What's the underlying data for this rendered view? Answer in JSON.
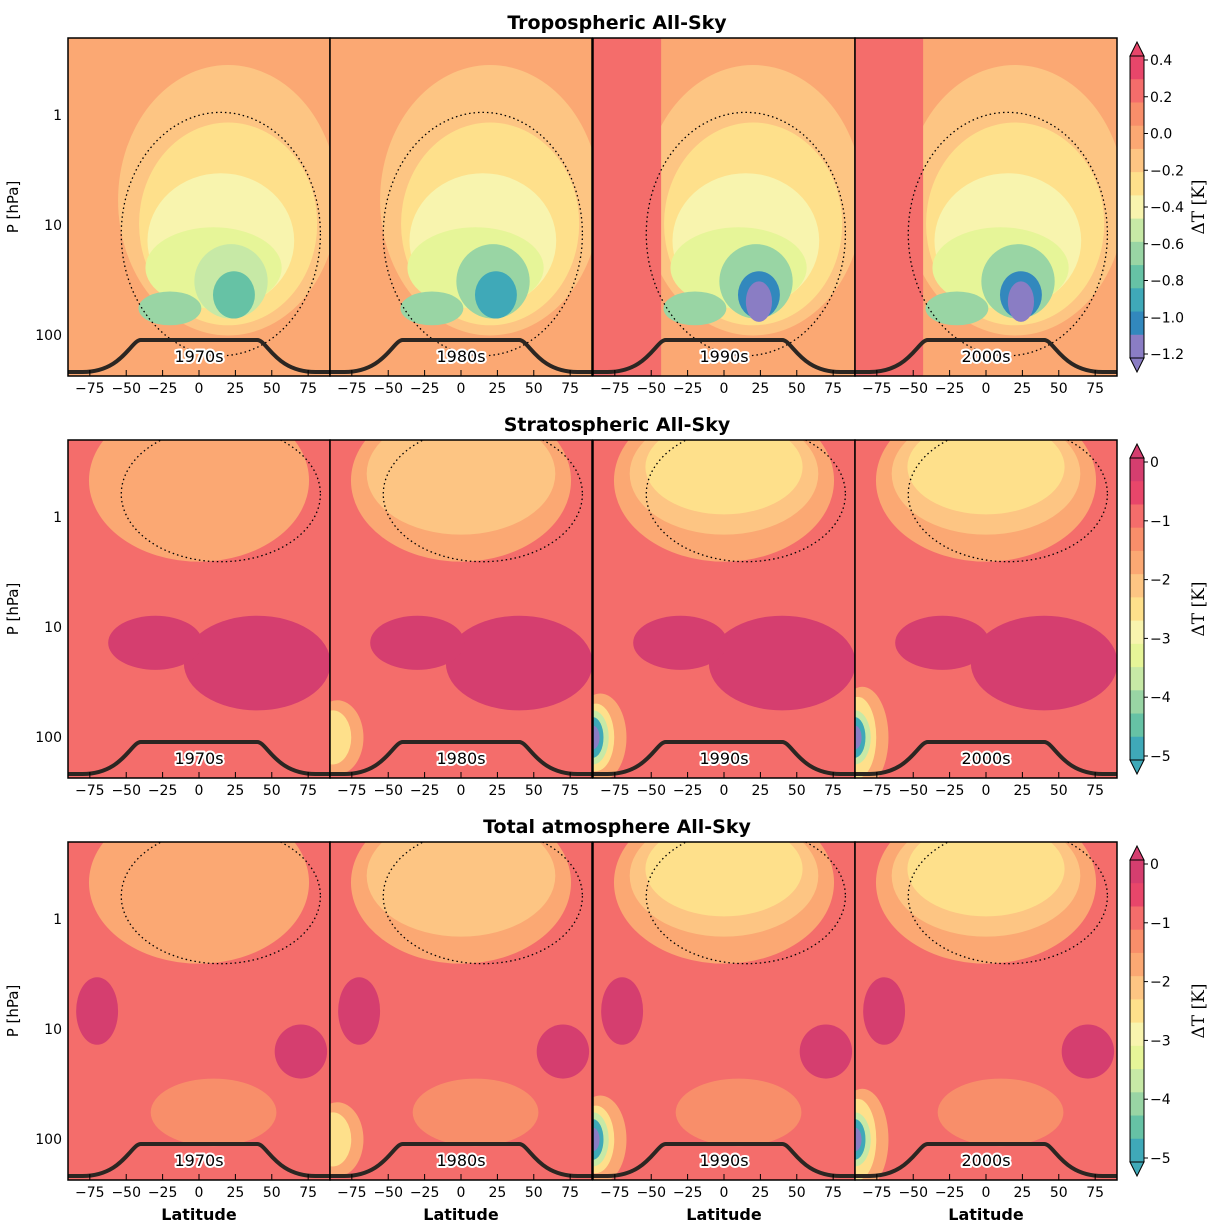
{
  "chart_data": [
    {
      "type": "heatmap",
      "title": "Tropospheric All-Sky",
      "ylabel": "P [hPa]",
      "xlabel": "",
      "colorbar_label": "ΔT  [K]",
      "colorbar_ticks": [
        "0.4",
        "0.2",
        "0.0",
        "−0.2",
        "−0.4",
        "−0.6",
        "−0.8",
        "−1.0",
        "−1.2"
      ],
      "colorbar_range": [
        -1.3,
        0.5
      ],
      "y_ticks": [
        "1",
        "10",
        "100"
      ],
      "x_ticks": [
        "−75",
        "−50",
        "−25",
        "0",
        "25",
        "50",
        "75"
      ],
      "xlim": [
        -90,
        90
      ],
      "y_scale": "log",
      "panels": [
        {
          "label": "1970s",
          "min_dT": -1.0,
          "max_dT": 0.1
        },
        {
          "label": "1980s",
          "min_dT": -1.1,
          "max_dT": 0.1
        },
        {
          "label": "1990s",
          "min_dT": -1.2,
          "max_dT": 0.3
        },
        {
          "label": "2000s",
          "min_dT": -1.2,
          "max_dT": 0.3
        }
      ]
    },
    {
      "type": "heatmap",
      "title": "Stratospheric All-Sky",
      "ylabel": "P [hPa]",
      "xlabel": "",
      "colorbar_label": "ΔT  [K]",
      "colorbar_ticks": [
        "0",
        "−1",
        "−2",
        "−3",
        "−4",
        "−5"
      ],
      "colorbar_range": [
        -5.5,
        0.2
      ],
      "y_ticks": [
        "1",
        "10",
        "100"
      ],
      "x_ticks": [
        "−75",
        "−50",
        "−25",
        "0",
        "25",
        "50",
        "75"
      ],
      "xlim": [
        -90,
        90
      ],
      "y_scale": "log",
      "panels": [
        {
          "label": "1970s",
          "min_dT": -1.5,
          "max_dT": 0.0
        },
        {
          "label": "1980s",
          "min_dT": -2.0,
          "max_dT": 0.0
        },
        {
          "label": "1990s",
          "min_dT": -5.0,
          "max_dT": 0.0
        },
        {
          "label": "2000s",
          "min_dT": -5.5,
          "max_dT": 0.0
        }
      ]
    },
    {
      "type": "heatmap",
      "title": "Total atmosphere All-Sky",
      "ylabel": "P [hPa]",
      "xlabel": "Latitude",
      "colorbar_label": "ΔT  [K]",
      "colorbar_ticks": [
        "0",
        "−1",
        "−2",
        "−3",
        "−4",
        "−5"
      ],
      "colorbar_range": [
        -5.5,
        0.2
      ],
      "y_ticks": [
        "1",
        "10",
        "100"
      ],
      "x_ticks": [
        "−75",
        "−50",
        "−25",
        "0",
        "25",
        "50",
        "75"
      ],
      "xlim": [
        -90,
        90
      ],
      "y_scale": "log",
      "panels": [
        {
          "label": "1970s",
          "min_dT": -1.5,
          "max_dT": 0.0
        },
        {
          "label": "1980s",
          "min_dT": -2.0,
          "max_dT": 0.0
        },
        {
          "label": "1990s",
          "min_dT": -5.0,
          "max_dT": 0.0
        },
        {
          "label": "2000s",
          "min_dT": -5.5,
          "max_dT": 0.0
        }
      ]
    }
  ],
  "colors": {
    "palette_warm_to_cool": [
      "#d53e6f",
      "#e8466a",
      "#f46d6b",
      "#f88e6a",
      "#fba873",
      "#fdc583",
      "#fee08b",
      "#f8f4ae",
      "#e6f598",
      "#c7e9a6",
      "#99d5a4",
      "#66c2a5",
      "#3fa9b8",
      "#3288bd",
      "#8a7dc4"
    ]
  }
}
